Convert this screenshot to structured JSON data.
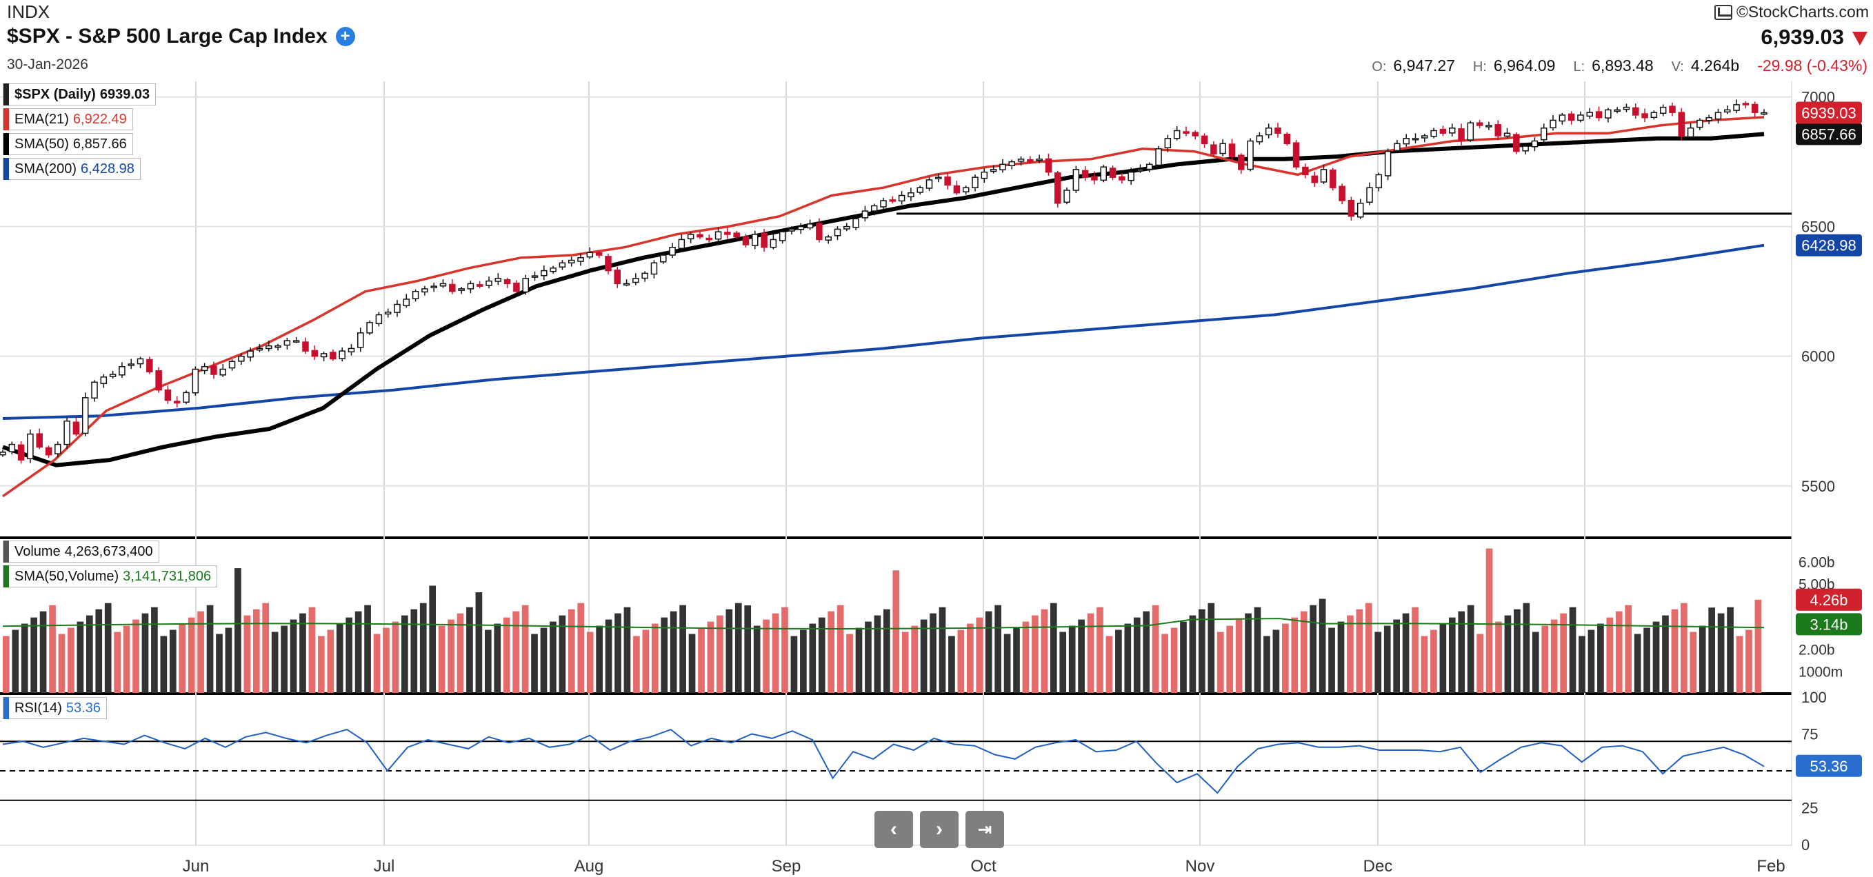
{
  "header": {
    "exchange": "INDX",
    "title": "$SPX - S&P 500 Large Cap Index",
    "date": "30-Jan-2026",
    "brand": "©StockCharts.com",
    "price": "6,939.03",
    "ohlc": [
      {
        "label": "O:",
        "value": "6,947.27"
      },
      {
        "label": "H:",
        "value": "6,964.09"
      },
      {
        "label": "L:",
        "value": "6,893.48"
      },
      {
        "label": "V:",
        "value": "4.264b"
      }
    ],
    "change": "-29.98 (-0.43%)"
  },
  "legends": {
    "price": {
      "name": "$SPX (Daily)",
      "value": "6939.03",
      "color": "#222222"
    },
    "ema21": {
      "name": "EMA(21)",
      "value": "6,922.49",
      "color": "#d9342b"
    },
    "sma50": {
      "name": "SMA(50)",
      "value": "6,857.66",
      "color": "#000000"
    },
    "sma200": {
      "name": "SMA(200)",
      "value": "6,428.98",
      "color": "#1446a8"
    },
    "volume": {
      "name": "Volume",
      "value": "4,263,673,400",
      "color": "#555555"
    },
    "vol_sma": {
      "name": "SMA(50,Volume)",
      "value": "3,141,731,806",
      "color": "#1b7a1b"
    },
    "rsi": {
      "name": "RSI(14)",
      "value": "53.36",
      "color": "#2a6fd0"
    }
  },
  "chart_data": {
    "type": "line",
    "price_axis": {
      "ticks": [
        "7000",
        "6500",
        "6000",
        "5500"
      ],
      "ylim": [
        5300,
        7060
      ]
    },
    "volume_axis": {
      "ticks": [
        "6.00b",
        "5.00b",
        "2.00b",
        "1000m"
      ]
    },
    "rsi_axis": {
      "ticks": [
        "100",
        "75",
        "25",
        "0"
      ],
      "ylim": [
        0,
        100
      ],
      "levels": [
        70,
        50,
        30
      ]
    },
    "months": [
      "Jun",
      "Jul",
      "Aug",
      "Sep",
      "Oct",
      "Nov",
      "Dec",
      "Feb"
    ],
    "value_tags": {
      "price": {
        "text": "6939.03",
        "color": "#d0212d"
      },
      "sma50": {
        "text": "6857.66",
        "color": "#111111"
      },
      "sma200": {
        "text": "6428.98",
        "color": "#1446a8"
      },
      "volume": {
        "text": "4.26b",
        "color": "#d0212d"
      },
      "vol_sma": {
        "text": "3.14b",
        "color": "#1b7a1b"
      },
      "rsi": {
        "text": "53.36",
        "color": "#2a6fd0"
      }
    },
    "support_level": 6550,
    "series": [
      {
        "name": "$SPX (Daily)",
        "values": [
          5630,
          5660,
          5600,
          5700,
          5650,
          5620,
          5660,
          5750,
          5700,
          5840,
          5900,
          5920,
          5930,
          5960,
          5970,
          5990,
          5940,
          5870,
          5830,
          5820,
          5860,
          5950,
          5960,
          5930,
          5950,
          5980,
          6000,
          6020,
          6030,
          6040,
          6040,
          6060,
          6060,
          6020,
          6000,
          6010,
          5990,
          6020,
          6030,
          6090,
          6130,
          6160,
          6170,
          6200,
          6220,
          6250,
          6260,
          6270,
          6280,
          6250,
          6260,
          6280,
          6270,
          6290,
          6300,
          6280,
          6250,
          6300,
          6310,
          6330,
          6340,
          6360,
          6370,
          6380,
          6400,
          6390,
          6330,
          6280,
          6280,
          6300,
          6320,
          6360,
          6390,
          6420,
          6450,
          6470,
          6460,
          6450,
          6480,
          6470,
          6460,
          6430,
          6470,
          6420,
          6450,
          6480,
          6490,
          6500,
          6510,
          6450,
          6460,
          6490,
          6500,
          6530,
          6560,
          6580,
          6600,
          6600,
          6620,
          6630,
          6650,
          6680,
          6690,
          6660,
          6630,
          6650,
          6690,
          6710,
          6720,
          6740,
          6750,
          6760,
          6750,
          6760,
          6710,
          6590,
          6640,
          6720,
          6690,
          6680,
          6730,
          6690,
          6680,
          6710,
          6720,
          6740,
          6800,
          6840,
          6870,
          6860,
          6850,
          6820,
          6780,
          6820,
          6770,
          6720,
          6830,
          6850,
          6880,
          6860,
          6820,
          6730,
          6700,
          6670,
          6720,
          6650,
          6600,
          6540,
          6590,
          6650,
          6700,
          6790,
          6820,
          6840,
          6840,
          6850,
          6870,
          6860,
          6880,
          6830,
          6900,
          6890,
          6890,
          6850,
          6860,
          6790,
          6810,
          6830,
          6880,
          6910,
          6930,
          6910,
          6930,
          6940,
          6920,
          6950,
          6950,
          6960,
          6930,
          6920,
          6940,
          6960,
          6940,
          6850,
          6880,
          6910,
          6920,
          6940,
          6950,
          6970,
          6970,
          6940,
          6939
        ]
      },
      {
        "name": "EMA(21)",
        "values": [
          5460,
          5600,
          5790,
          5880,
          5960,
          6040,
          6140,
          6250,
          6290,
          6340,
          6380,
          6390,
          6420,
          6470,
          6500,
          6540,
          6620,
          6650,
          6700,
          6730,
          6750,
          6760,
          6800,
          6790,
          6740,
          6700,
          6770,
          6800,
          6830,
          6840,
          6860,
          6860,
          6890,
          6910,
          6922
        ]
      },
      {
        "name": "SMA(50)",
        "values": [
          5650,
          5580,
          5600,
          5650,
          5690,
          5720,
          5800,
          5950,
          6080,
          6180,
          6270,
          6330,
          6380,
          6420,
          6460,
          6500,
          6540,
          6580,
          6610,
          6650,
          6690,
          6710,
          6740,
          6760,
          6760,
          6770,
          6790,
          6800,
          6810,
          6820,
          6830,
          6840,
          6840,
          6857
        ]
      },
      {
        "name": "SMA(200)",
        "values": [
          5760,
          5770,
          5800,
          5840,
          5870,
          5910,
          5940,
          5970,
          6000,
          6030,
          6070,
          6100,
          6130,
          6160,
          6210,
          6260,
          6320,
          6370,
          6428
        ]
      },
      {
        "name": "RSI(14)",
        "values": [
          68,
          70,
          66,
          69,
          72,
          70,
          68,
          74,
          69,
          65,
          72,
          66,
          73,
          76,
          72,
          69,
          74,
          78,
          69,
          50,
          66,
          71,
          68,
          65,
          73,
          69,
          72,
          66,
          68,
          74,
          64,
          70,
          73,
          78,
          67,
          72,
          69,
          75,
          72,
          77,
          71,
          45,
          63,
          58,
          68,
          64,
          72,
          68,
          67,
          61,
          58,
          66,
          69,
          71,
          63,
          64,
          70,
          55,
          42,
          48,
          35,
          53,
          65,
          68,
          69,
          66,
          66,
          67,
          64,
          64,
          64,
          63,
          66,
          49,
          58,
          66,
          69,
          67,
          56,
          66,
          67,
          63,
          48,
          60,
          63,
          66,
          61,
          53
        ]
      }
    ]
  }
}
